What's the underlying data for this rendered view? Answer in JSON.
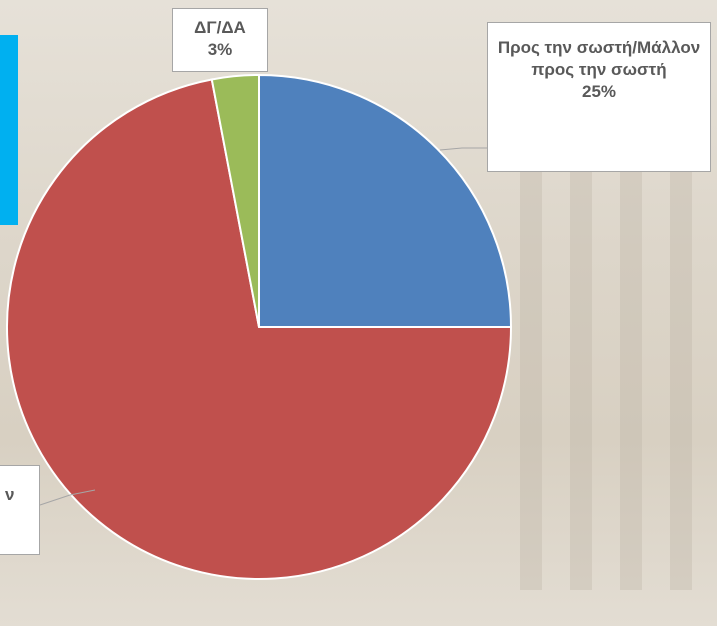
{
  "chart_data": {
    "type": "pie",
    "categories": [
      "Προς την σωστή/Μάλλον προς την σωστή",
      "ν",
      "ΔΓ/ΔΑ"
    ],
    "values": [
      25,
      72,
      3
    ],
    "value_labels": [
      "25%",
      null,
      "3%"
    ],
    "colors": [
      "#4f81bd",
      "#c0504d",
      "#9bbb59"
    ]
  }
}
